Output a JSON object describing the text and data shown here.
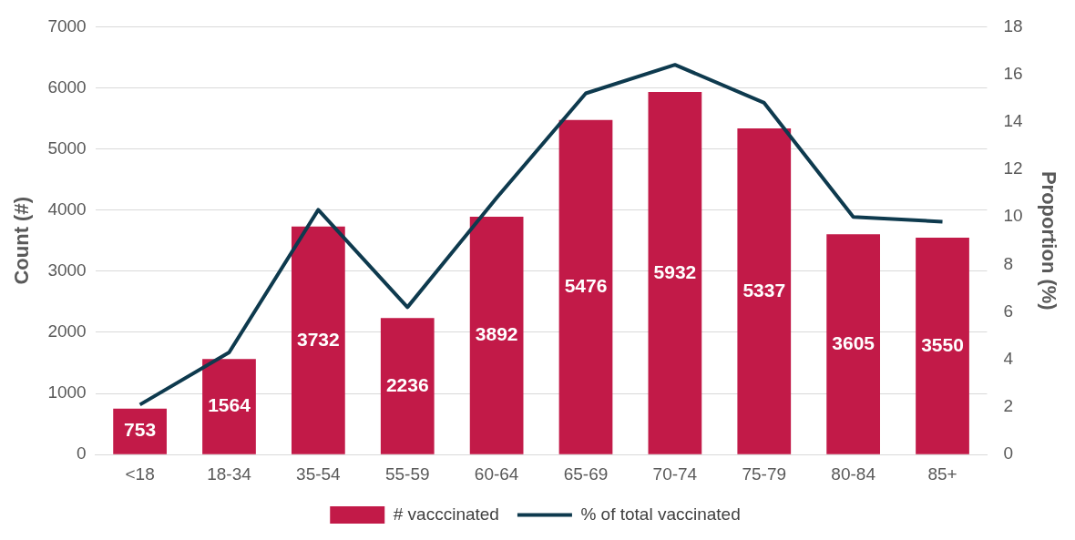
{
  "chart_data": {
    "type": "bar",
    "categories": [
      "<18",
      "18-34",
      "35-54",
      "55-59",
      "60-64",
      "65-69",
      "70-74",
      "75-79",
      "80-84",
      "85+"
    ],
    "series": [
      {
        "name": "# vacccinated",
        "color": "#c21a48",
        "values": [
          753,
          1564,
          3732,
          2236,
          3892,
          5476,
          5932,
          5337,
          3605,
          3550
        ],
        "value_labels": [
          "753",
          "1564",
          "3732",
          "2236",
          "3892",
          "5476",
          "5932",
          "5337",
          "3605",
          "3550"
        ]
      },
      {
        "name": "% of total vaccinated",
        "type": "line",
        "axis": "y2",
        "color": "#0e3a4e",
        "values": [
          2.1,
          4.3,
          10.3,
          6.2,
          10.8,
          15.2,
          16.4,
          14.8,
          10.0,
          9.8
        ]
      }
    ],
    "ylabel": "Count (#)",
    "y2label": "Proportion (%)",
    "ylim": [
      0,
      7000
    ],
    "yticks": [
      0,
      1000,
      2000,
      3000,
      4000,
      5000,
      6000,
      7000
    ],
    "y2lim": [
      0,
      18
    ],
    "y2ticks": [
      0,
      2,
      4,
      6,
      8,
      10,
      12,
      14,
      16,
      18
    ],
    "grid": "y",
    "legend": "bottom",
    "marker": "none"
  }
}
